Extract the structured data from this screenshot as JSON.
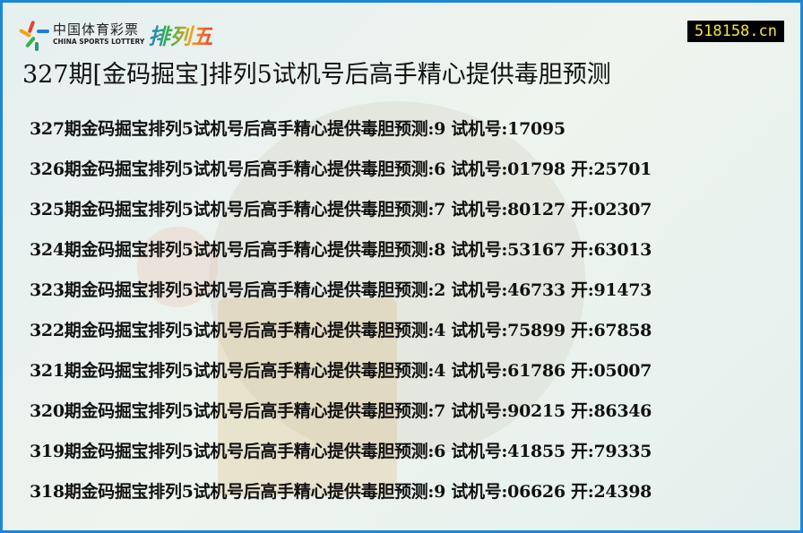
{
  "logo": {
    "cn": "中国体育彩票",
    "en": "CHINA SPORTS LOTTERY",
    "game": "排列五"
  },
  "site_badge": "518158.cn",
  "title": "327期[金码掘宝]排列5试机号后高手精心提供毒胆预测",
  "rows": [
    {
      "text": "327期金码掘宝排列5试机号后高手精心提供毒胆预测:9 试机号:17095"
    },
    {
      "text": "326期金码掘宝排列5试机号后高手精心提供毒胆预测:6 试机号:01798 开:25701"
    },
    {
      "text": "325期金码掘宝排列5试机号后高手精心提供毒胆预测:7 试机号:80127 开:02307"
    },
    {
      "text": "324期金码掘宝排列5试机号后高手精心提供毒胆预测:8 试机号:53167 开:63013"
    },
    {
      "text": "323期金码掘宝排列5试机号后高手精心提供毒胆预测:2 试机号:46733 开:91473"
    },
    {
      "text": "322期金码掘宝排列5试机号后高手精心提供毒胆预测:4 试机号:75899 开:67858"
    },
    {
      "text": "321期金码掘宝排列5试机号后高手精心提供毒胆预测:4 试机号:61786 开:05007"
    },
    {
      "text": "320期金码掘宝排列5试机号后高手精心提供毒胆预测:7 试机号:90215 开:86346"
    },
    {
      "text": "319期金码掘宝排列5试机号后高手精心提供毒胆预测:6 试机号:41855 开:79335"
    },
    {
      "text": "318期金码掘宝排列5试机号后高手精心提供毒胆预测:9 试机号:06626 开:24398"
    }
  ],
  "colors": {
    "border": "#1e86d6",
    "badge_bg": "#000000",
    "badge_text": "#f4e53a"
  }
}
